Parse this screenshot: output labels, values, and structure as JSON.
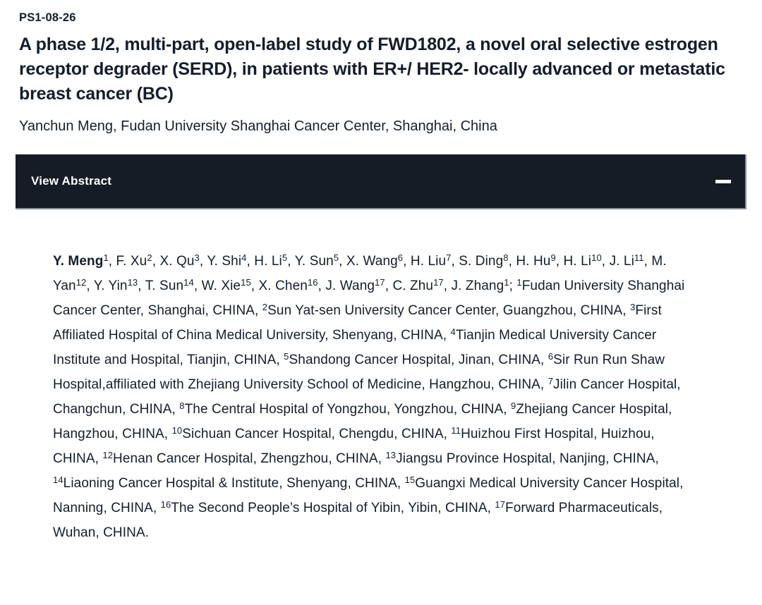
{
  "colors": {
    "text_ink": "#141d2b",
    "bar_bg": "#161c26",
    "bar_text": "#ffffff",
    "bar_edge": "#8d939c",
    "page_bg": "#ffffff"
  },
  "header": {
    "session_code": "PS1-08-26",
    "title": "A phase 1/2, multi-part, open-label study of FWD1802, a novel oral selective estrogen receptor degrader (SERD), in patients with ER+/ HER2- locally advanced or metastatic breast cancer (BC)",
    "presenter_line": "Yanchun Meng, Fudan University Shanghai Cancer Center, Shanghai, China"
  },
  "abstract_panel": {
    "toggle_label": "View Abstract",
    "state_icon": "minus-icon"
  },
  "abstract": {
    "authors": [
      {
        "name": "Y. Meng",
        "sup": "1",
        "bold": true
      },
      {
        "name": "F. Xu",
        "sup": "2"
      },
      {
        "name": "X. Qu",
        "sup": "3"
      },
      {
        "name": "Y. Shi",
        "sup": "4"
      },
      {
        "name": "H. Li",
        "sup": "5"
      },
      {
        "name": "Y. Sun",
        "sup": "5"
      },
      {
        "name": "X. Wang",
        "sup": "6"
      },
      {
        "name": "H. Liu",
        "sup": "7"
      },
      {
        "name": "S. Ding",
        "sup": "8"
      },
      {
        "name": "H. Hu",
        "sup": "9"
      },
      {
        "name": "H. Li",
        "sup": "10"
      },
      {
        "name": "J. Li",
        "sup": "11"
      },
      {
        "name": "M. Yan",
        "sup": "12"
      },
      {
        "name": "Y. Yin",
        "sup": "13"
      },
      {
        "name": "T. Sun",
        "sup": "14"
      },
      {
        "name": "W. Xie",
        "sup": "15"
      },
      {
        "name": "X. Chen",
        "sup": "16"
      },
      {
        "name": "J. Wang",
        "sup": "17"
      },
      {
        "name": "C. Zhu",
        "sup": "17"
      },
      {
        "name": "J. Zhang",
        "sup": "1"
      }
    ],
    "author_separator": ", ",
    "authors_terminator": "; ",
    "affiliations": [
      {
        "sup": "1",
        "text": "Fudan University Shanghai Cancer Center, Shanghai, CHINA, "
      },
      {
        "sup": "2",
        "text": "Sun Yat-sen University Cancer Center, Guangzhou, CHINA, "
      },
      {
        "sup": "3",
        "text": "First Affiliated Hospital of China Medical University, Shenyang, CHINA, "
      },
      {
        "sup": "4",
        "text": "Tianjin Medical University Cancer Institute and Hospital, Tianjin, CHINA, "
      },
      {
        "sup": "5",
        "text": "Shandong Cancer Hospital, Jinan, CHINA, "
      },
      {
        "sup": "6",
        "text": "Sir Run Run Shaw Hospital,affiliated with Zhejiang University School of Medicine, Hangzhou, CHINA, "
      },
      {
        "sup": "7",
        "text": "Jilin Cancer Hospital, Changchun, CHINA, "
      },
      {
        "sup": "8",
        "text": "The Central Hospital of Yongzhou, Yongzhou, CHINA, "
      },
      {
        "sup": "9",
        "text": "Zhejiang Cancer Hospital, Hangzhou, CHINA, "
      },
      {
        "sup": "10",
        "text": "Sichuan Cancer Hospital, Chengdu, CHINA, "
      },
      {
        "sup": "11",
        "text": "Huizhou First Hospital, Huizhou, CHINA, "
      },
      {
        "sup": "12",
        "text": "Henan Cancer Hospital, Zhengzhou, CHINA, "
      },
      {
        "sup": "13",
        "text": "Jiangsu Province Hospital, Nanjing, CHINA, "
      },
      {
        "sup": "14",
        "text": "Liaoning Cancer Hospital & Institute, Shenyang, CHINA, "
      },
      {
        "sup": "15",
        "text": "Guangxi Medical University Cancer Hospital, Nanning, CHINA, "
      },
      {
        "sup": "16",
        "text": "The Second People’s Hospital of Yibin, Yibin, CHINA, "
      },
      {
        "sup": "17",
        "text": "Forward Pharmaceuticals, Wuhan, CHINA."
      }
    ]
  }
}
